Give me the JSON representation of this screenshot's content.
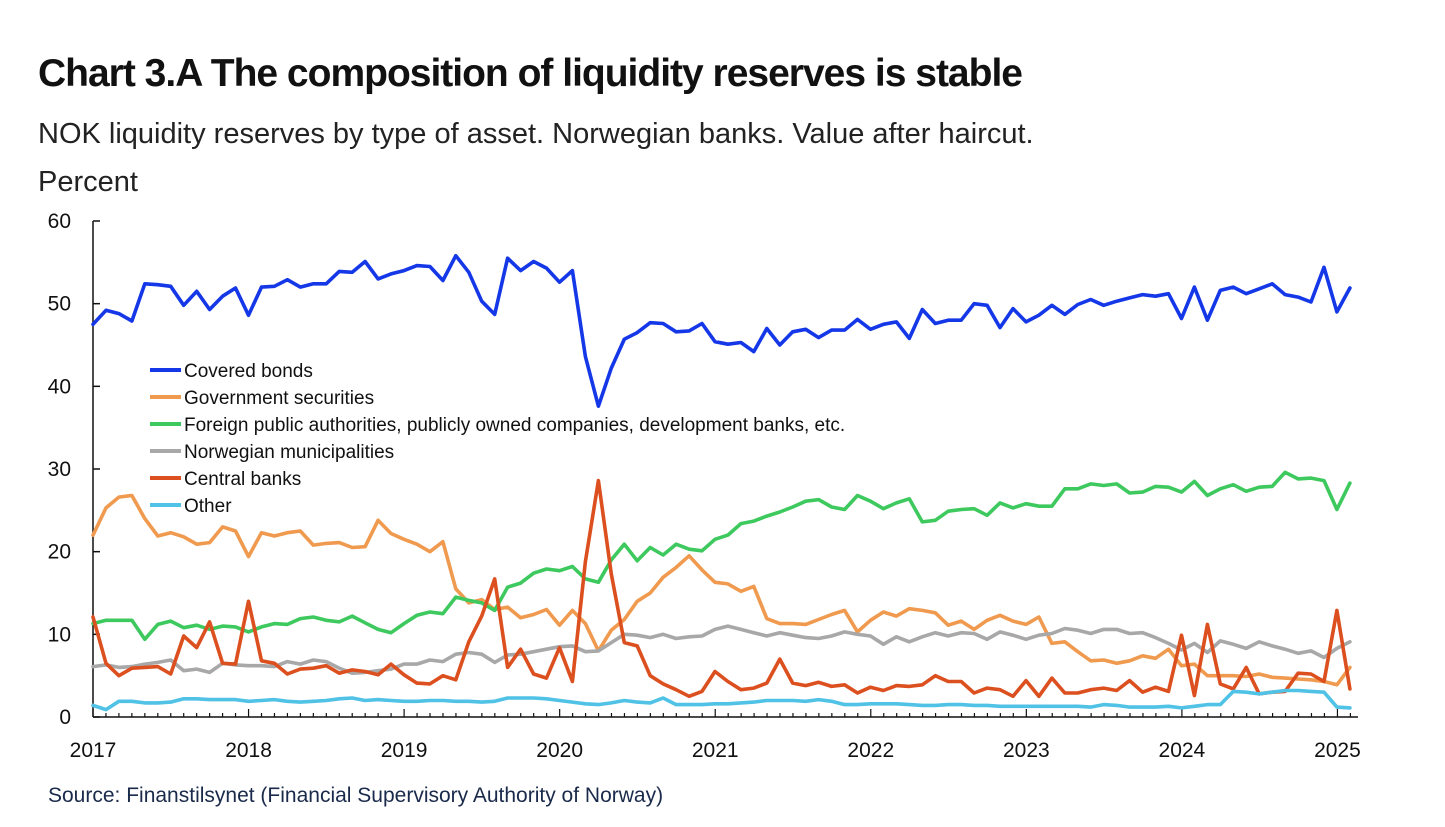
{
  "header": {
    "title": "Chart 3.A The composition of liquidity reserves is stable",
    "subtitle": "NOK liquidity reserves by type of asset. Norwegian banks. Value after haircut. Percent"
  },
  "footer": {
    "source": "Source: Finanstilsynet (Financial Supervisory Authority of Norway)"
  },
  "chart_data": {
    "type": "line",
    "title": "Chart 3.A The composition of liquidity reserves is stable",
    "subtitle": "NOK liquidity reserves by type of asset. Norwegian banks. Value after haircut. Percent",
    "xlabel": "",
    "ylabel": "",
    "xlim": [
      2017.0,
      2025.1
    ],
    "ylim": [
      0,
      60
    ],
    "x_ticks": [
      "2017",
      "2018",
      "2019",
      "2020",
      "2021",
      "2022",
      "2023",
      "2024",
      "2025"
    ],
    "y_ticks": [
      "0",
      "10",
      "20",
      "30",
      "40",
      "50",
      "60"
    ],
    "grid": false,
    "legend_position": "left, inside plot",
    "x_start": 2017.0,
    "x_step": 0.0833,
    "series": [
      {
        "name": "Covered bonds",
        "color": "#1437e8",
        "values": [
          47.5,
          49.2,
          48.8,
          47.9,
          52.4,
          52.3,
          52.1,
          49.8,
          51.5,
          49.3,
          50.9,
          51.9,
          48.6,
          52.0,
          52.1,
          52.9,
          52.0,
          52.4,
          52.4,
          53.9,
          53.8,
          55.1,
          53.0,
          53.6,
          54.0,
          54.6,
          54.5,
          52.8,
          55.8,
          53.8,
          50.3,
          48.7,
          55.5,
          54.0,
          55.1,
          54.3,
          52.6,
          54.0,
          43.6,
          37.6,
          42.2,
          45.7,
          46.5,
          47.7,
          47.6,
          46.6,
          46.7,
          47.6,
          45.4,
          45.1,
          45.3,
          44.2,
          47.0,
          45.0,
          46.6,
          46.9,
          45.9,
          46.8,
          46.8,
          48.1,
          46.9,
          47.5,
          47.8,
          45.8,
          49.3,
          47.6,
          48.0,
          48.0,
          50.0,
          49.8,
          47.1,
          49.4,
          47.8,
          48.6,
          49.8,
          48.7,
          49.9,
          50.5,
          49.8,
          50.3,
          50.7,
          51.1,
          50.9,
          51.2,
          48.2,
          52.0,
          48.0,
          51.6,
          52.0,
          51.2,
          51.8,
          52.4,
          51.1,
          50.8,
          50.2,
          54.4,
          49.0,
          51.9
        ]
      },
      {
        "name": "Government securities",
        "color": "#f09a50",
        "values": [
          22.0,
          25.3,
          26.6,
          26.8,
          24.0,
          21.9,
          22.3,
          21.8,
          20.9,
          21.1,
          23.0,
          22.5,
          19.4,
          22.3,
          21.9,
          22.3,
          22.5,
          20.8,
          21.0,
          21.1,
          20.5,
          20.6,
          23.8,
          22.2,
          21.5,
          20.9,
          20.0,
          21.2,
          15.5,
          13.8,
          14.2,
          13.0,
          13.3,
          12.0,
          12.4,
          13.0,
          11.1,
          12.9,
          11.3,
          8.0,
          10.5,
          11.8,
          14.0,
          15.0,
          16.9,
          18.1,
          19.5,
          17.8,
          16.3,
          16.1,
          15.2,
          15.8,
          11.9,
          11.3,
          11.3,
          11.2,
          11.8,
          12.4,
          12.9,
          10.3,
          11.7,
          12.7,
          12.2,
          13.1,
          12.9,
          12.6,
          11.1,
          11.6,
          10.6,
          11.7,
          12.3,
          11.6,
          11.2,
          12.1,
          8.9,
          9.1,
          7.9,
          6.8,
          6.9,
          6.5,
          6.8,
          7.4,
          7.1,
          8.2,
          6.2,
          6.4,
          5.0,
          5.0,
          5.0,
          4.9,
          5.2,
          4.8,
          4.7,
          4.6,
          4.5,
          4.3,
          3.9,
          6.0
        ]
      },
      {
        "name": "Foreign public authorities, publicly owned companies, development banks, etc.",
        "color": "#3ec95e",
        "values": [
          11.3,
          11.7,
          11.7,
          11.7,
          9.4,
          11.2,
          11.6,
          10.8,
          11.1,
          10.6,
          11.0,
          10.9,
          10.3,
          10.9,
          11.3,
          11.2,
          11.9,
          12.1,
          11.7,
          11.5,
          12.2,
          11.4,
          10.6,
          10.2,
          11.3,
          12.3,
          12.7,
          12.5,
          14.5,
          14.1,
          13.8,
          12.9,
          15.7,
          16.2,
          17.4,
          17.9,
          17.7,
          18.2,
          16.7,
          16.3,
          19.0,
          20.9,
          18.9,
          20.5,
          19.6,
          20.9,
          20.3,
          20.1,
          21.5,
          22.0,
          23.4,
          23.7,
          24.3,
          24.8,
          25.4,
          26.1,
          26.3,
          25.4,
          25.1,
          26.8,
          26.1,
          25.2,
          25.9,
          26.4,
          23.6,
          23.8,
          24.9,
          25.1,
          25.2,
          24.4,
          25.9,
          25.3,
          25.8,
          25.5,
          25.5,
          27.6,
          27.6,
          28.2,
          28.0,
          28.2,
          27.1,
          27.2,
          27.9,
          27.8,
          27.2,
          28.5,
          26.8,
          27.6,
          28.1,
          27.3,
          27.8,
          27.9,
          29.6,
          28.8,
          28.9,
          28.6,
          25.1,
          28.3
        ]
      },
      {
        "name": "Norwegian municipalities",
        "color": "#a8a8a8",
        "values": [
          6.1,
          6.3,
          6.0,
          6.1,
          6.4,
          6.6,
          6.9,
          5.6,
          5.8,
          5.4,
          6.5,
          6.3,
          6.2,
          6.2,
          6.1,
          6.7,
          6.4,
          6.9,
          6.7,
          5.9,
          5.3,
          5.4,
          5.6,
          5.8,
          6.4,
          6.4,
          6.9,
          6.7,
          7.6,
          7.8,
          7.6,
          6.6,
          7.5,
          7.6,
          7.9,
          8.2,
          8.5,
          8.6,
          7.9,
          8.0,
          9.0,
          10.0,
          9.9,
          9.6,
          10.0,
          9.5,
          9.7,
          9.8,
          10.6,
          11.0,
          10.6,
          10.2,
          9.8,
          10.2,
          9.9,
          9.6,
          9.5,
          9.8,
          10.3,
          10.0,
          9.8,
          8.8,
          9.7,
          9.1,
          9.7,
          10.2,
          9.8,
          10.2,
          10.1,
          9.4,
          10.3,
          9.9,
          9.4,
          9.9,
          10.1,
          10.7,
          10.5,
          10.1,
          10.6,
          10.6,
          10.1,
          10.2,
          9.6,
          8.9,
          8.1,
          8.9,
          7.8,
          9.2,
          8.8,
          8.3,
          9.1,
          8.6,
          8.2,
          7.7,
          8.0,
          7.2,
          8.3,
          9.1
        ]
      },
      {
        "name": "Central banks",
        "color": "#dc4f1f",
        "values": [
          12.1,
          6.5,
          5.0,
          5.9,
          6.0,
          6.1,
          5.2,
          9.8,
          8.4,
          11.5,
          6.5,
          6.4,
          14.0,
          6.8,
          6.5,
          5.2,
          5.8,
          5.9,
          6.2,
          5.3,
          5.7,
          5.5,
          5.1,
          6.4,
          5.1,
          4.1,
          4.0,
          5.0,
          4.5,
          9.1,
          12.2,
          16.7,
          6.0,
          8.2,
          5.2,
          4.7,
          8.4,
          4.3,
          18.8,
          28.6,
          17.3,
          9.0,
          8.6,
          5.0,
          4.0,
          3.3,
          2.5,
          3.1,
          5.5,
          4.3,
          3.3,
          3.5,
          4.1,
          7.0,
          4.1,
          3.8,
          4.2,
          3.7,
          3.9,
          2.9,
          3.6,
          3.2,
          3.8,
          3.7,
          3.9,
          5.0,
          4.3,
          4.3,
          2.9,
          3.5,
          3.3,
          2.5,
          4.4,
          2.5,
          4.7,
          2.9,
          2.9,
          3.3,
          3.5,
          3.2,
          4.4,
          3.0,
          3.6,
          3.1,
          9.9,
          2.6,
          11.2,
          4.0,
          3.4,
          6.0,
          2.8,
          3.0,
          3.1,
          5.3,
          5.2,
          4.3,
          12.9,
          3.4
        ]
      },
      {
        "name": "Other",
        "color": "#4fc2e6",
        "values": [
          1.4,
          0.9,
          1.9,
          1.9,
          1.7,
          1.7,
          1.8,
          2.2,
          2.2,
          2.1,
          2.1,
          2.1,
          1.9,
          2.0,
          2.1,
          1.9,
          1.8,
          1.9,
          2.0,
          2.2,
          2.3,
          2.0,
          2.1,
          2.0,
          1.9,
          1.9,
          2.0,
          2.0,
          1.9,
          1.9,
          1.8,
          1.9,
          2.3,
          2.3,
          2.3,
          2.2,
          2.0,
          1.8,
          1.6,
          1.5,
          1.7,
          2.0,
          1.8,
          1.7,
          2.3,
          1.5,
          1.5,
          1.5,
          1.6,
          1.6,
          1.7,
          1.8,
          2.0,
          2.0,
          2.0,
          1.9,
          2.1,
          1.9,
          1.5,
          1.5,
          1.6,
          1.6,
          1.6,
          1.5,
          1.4,
          1.4,
          1.5,
          1.5,
          1.4,
          1.4,
          1.3,
          1.3,
          1.3,
          1.3,
          1.3,
          1.3,
          1.3,
          1.2,
          1.5,
          1.4,
          1.2,
          1.2,
          1.2,
          1.3,
          1.1,
          1.3,
          1.5,
          1.5,
          3.1,
          3.0,
          2.8,
          3.0,
          3.2,
          3.2,
          3.1,
          3.0,
          1.2,
          1.1
        ]
      }
    ]
  }
}
